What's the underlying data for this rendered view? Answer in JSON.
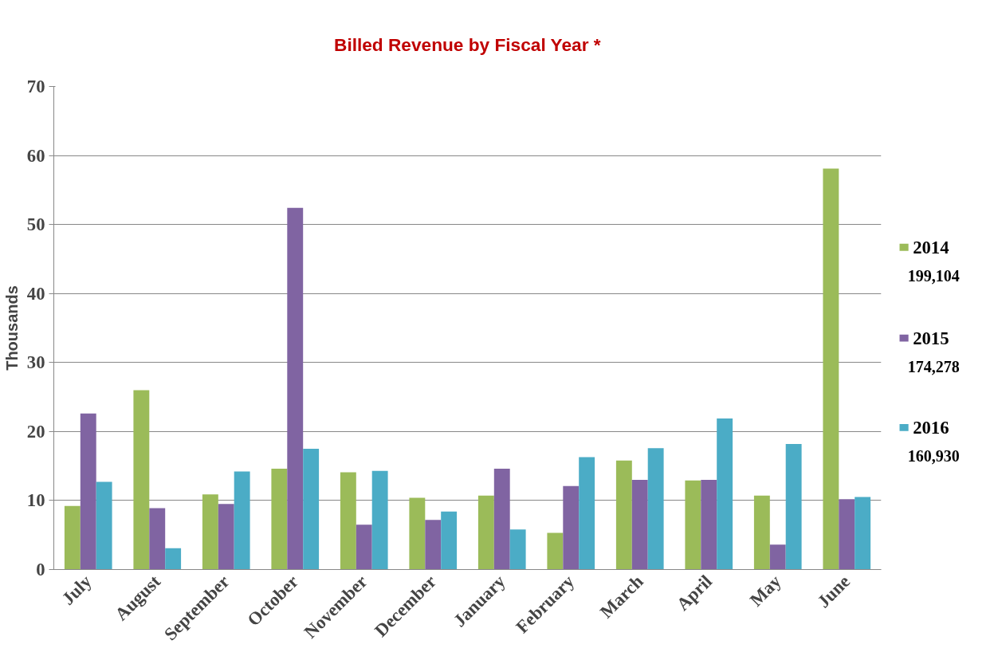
{
  "chart_data": {
    "type": "bar",
    "title": "Billed Revenue by Fiscal Year *",
    "ylabel": "Thousands",
    "categories": [
      "July",
      "August",
      "September",
      "October",
      "November",
      "December",
      "January",
      "February",
      "March",
      "April",
      "May",
      "June"
    ],
    "series": [
      {
        "name": "2014",
        "color": "#9bbb59",
        "values": [
          9.2,
          26.0,
          10.9,
          14.6,
          14.1,
          10.4,
          10.7,
          5.3,
          15.8,
          12.9,
          10.7,
          58.1
        ]
      },
      {
        "name": "2015",
        "color": "#8064a2",
        "values": [
          22.6,
          8.9,
          9.5,
          52.4,
          6.5,
          7.2,
          14.6,
          12.1,
          13.0,
          13.0,
          3.6,
          10.2
        ]
      },
      {
        "name": "2016",
        "color": "#4bacc6",
        "values": [
          12.7,
          3.1,
          14.2,
          17.5,
          14.3,
          8.4,
          5.8,
          16.3,
          17.6,
          21.9,
          18.2,
          10.5
        ]
      }
    ],
    "annotations": [
      "199,104",
      "174,278",
      "160,930"
    ],
    "ylim": [
      0,
      70
    ],
    "yticks": [
      0,
      10,
      20,
      30,
      40,
      50,
      60,
      70
    ],
    "grid": "y",
    "legend": "right"
  }
}
